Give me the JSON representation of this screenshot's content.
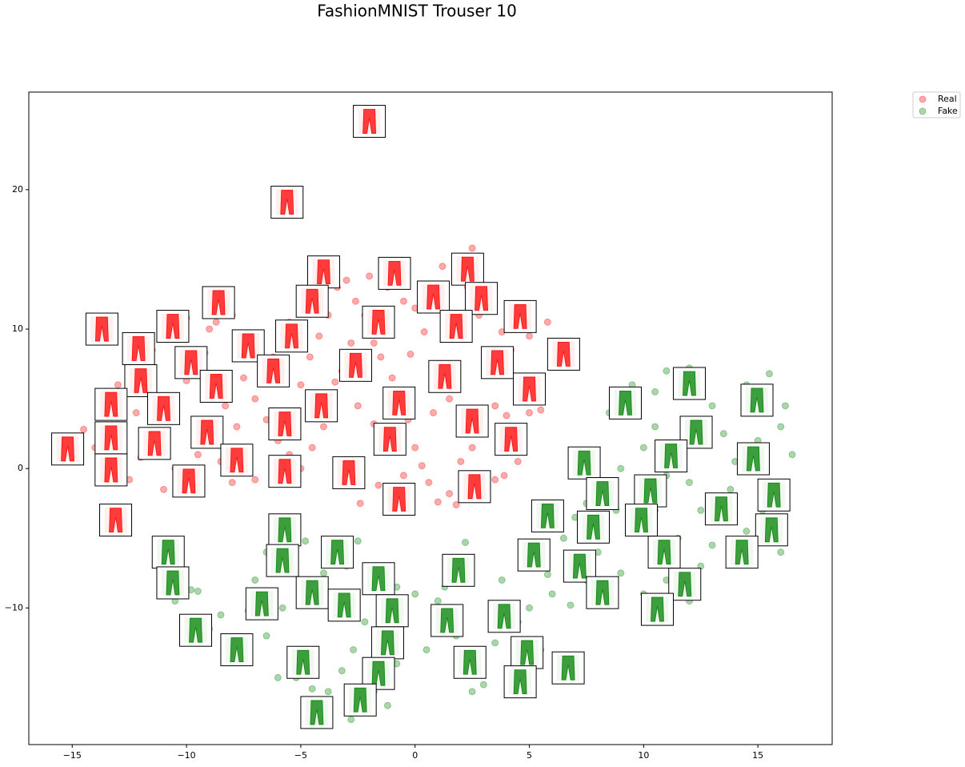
{
  "chart_data": {
    "type": "scatter",
    "title": "FashionMNIST Trouser 10",
    "xlim": [
      -16.9,
      18.25
    ],
    "ylim": [
      -19.8,
      27.0
    ],
    "xticks": [
      {
        "value": -15,
        "label": "−15"
      },
      {
        "value": -10,
        "label": "−10"
      },
      {
        "value": -5,
        "label": "−5"
      },
      0,
      5,
      10,
      15
    ],
    "yticks": [
      {
        "value": -10,
        "label": "−10"
      },
      0,
      10,
      20
    ],
    "legend": "upper-right-outside",
    "series": [
      {
        "name": "Real",
        "color": "#ff0000",
        "x": [
          -14.5,
          -14,
          -13.8,
          -12.5,
          -12,
          -11.5,
          -11,
          -10.5,
          -10,
          -9.5,
          -9,
          -8.7,
          -8,
          -7.5,
          -7,
          -6.5,
          -6,
          -5.5,
          -5,
          -4.6,
          -4.2,
          -3.8,
          -3.4,
          -3,
          -2.6,
          -2.2,
          -1.8,
          -1.5,
          -1,
          -0.6,
          -0.3,
          0,
          0.3,
          0.6,
          1,
          1.5,
          2,
          2.5,
          3,
          3.5,
          4,
          4.5,
          5,
          5.5,
          5.8,
          5,
          4.2,
          3.8,
          2.8,
          2.3,
          1.8,
          1.2,
          0.5,
          0,
          -0.5,
          -1.2,
          -2,
          -2.8,
          -3.2,
          -3.6,
          -4,
          -4.5,
          -5,
          -6,
          -7,
          -8,
          -8.5,
          -9.5,
          -10.5,
          -11,
          -12.2,
          -13,
          -12.5,
          -11.5,
          -10.8,
          -10,
          -9.2,
          -8.3,
          -7.8,
          -6.8,
          -6.2,
          -5.5,
          -4.8,
          -3.5,
          -2.5,
          -1.8,
          -1.2,
          -0.5,
          1.8,
          3.5,
          3.9,
          4.5,
          2.5,
          3.2,
          1.5,
          0.8,
          0.4,
          -0.2,
          2,
          -2.4,
          -1.6
        ],
        "y": [
          2.8,
          1.5,
          0.5,
          -0.8,
          0.8,
          2.6,
          3.5,
          5.2,
          6.3,
          7.1,
          10,
          10.5,
          11,
          6.5,
          5,
          3.5,
          2,
          1,
          6,
          8,
          9.5,
          11,
          13,
          13.5,
          12,
          11,
          9,
          8,
          6.5,
          5.5,
          3.5,
          1.5,
          0.2,
          -1,
          -2.4,
          -1.8,
          0.5,
          1.5,
          3,
          4.5,
          3.8,
          2.8,
          4,
          4.2,
          10.5,
          9.5,
          8.5,
          9.8,
          11,
          13,
          15,
          14.5,
          13,
          11.5,
          12,
          13,
          13.8,
          9,
          7,
          5,
          3,
          1.5,
          0,
          -0.5,
          -0.8,
          -1,
          0.5,
          1,
          0,
          -1.5,
          4,
          6,
          7.5,
          8.5,
          11,
          10.8,
          8.3,
          4.5,
          3,
          9.5,
          8,
          10.5,
          12,
          6.2,
          4.5,
          3.2,
          1.2,
          -0.5,
          -2.6,
          -0.8,
          -0.5,
          0.5,
          15.8,
          7.2,
          5,
          4,
          9.8,
          8.2,
          10.5,
          -2.5,
          -1.2
        ],
        "thumb_x": [
          -2.0,
          -5.6,
          -4.0,
          -0.9,
          2.3,
          -8.6,
          -4.5,
          0.8,
          2.9,
          4.6,
          -13.7,
          -10.6,
          -5.4,
          -1.6,
          1.8,
          -12.1,
          -7.3,
          -9.8,
          -2.6,
          3.6,
          6.5,
          -6.2,
          -12.0,
          1.3,
          5.0,
          -8.7,
          -13.3,
          -11.0,
          -4.1,
          -0.7,
          -5.7,
          2.5,
          -9.1,
          -13.3,
          4.2,
          -1.1,
          -15.2,
          -11.4,
          -7.8,
          -5.7,
          -2.9,
          -13.3,
          -9.9,
          2.6,
          -0.7,
          -13.1
        ],
        "thumb_y": [
          24.9,
          19.1,
          14.1,
          14.0,
          14.3,
          11.9,
          12.0,
          12.3,
          12.2,
          10.9,
          10.0,
          10.2,
          9.5,
          10.5,
          10.2,
          8.6,
          8.8,
          7.6,
          7.4,
          7.6,
          8.2,
          7.0,
          6.3,
          6.6,
          5.7,
          5.9,
          4.6,
          4.3,
          4.5,
          4.7,
          3.2,
          3.4,
          2.6,
          2.2,
          2.1,
          2.1,
          1.4,
          1.8,
          0.6,
          -0.2,
          -0.3,
          -0.1,
          -0.9,
          -1.3,
          -2.2,
          -3.7
        ]
      },
      {
        "name": "Fake",
        "color": "#008000",
        "x": [
          8.5,
          9.5,
          10.5,
          11,
          12,
          13,
          13.5,
          14.5,
          15.5,
          16,
          16.5,
          15.8,
          15.2,
          14.5,
          16,
          13,
          12.5,
          12,
          11,
          10,
          9,
          8.5,
          7.5,
          7,
          6.5,
          8,
          9,
          10,
          11,
          12,
          12.5,
          11.5,
          10.5,
          9.8,
          8.8,
          14,
          13.8,
          15,
          16.2,
          11.8,
          10.5,
          7.5,
          6,
          5,
          4.5,
          3.5,
          4.2,
          5,
          6.2,
          5.5,
          3,
          2.5,
          1.8,
          1,
          0,
          -0.8,
          -1.5,
          -2.2,
          -2.7,
          -3.2,
          -3.8,
          -4.5,
          -5.2,
          -6,
          -6.5,
          -7.5,
          -8.2,
          -9,
          -10,
          -10.5,
          -9.8,
          -9.5,
          -7,
          -6.5,
          -5.5,
          -4.8,
          -4,
          -3,
          -2.5,
          -1.8,
          -1.2,
          -2.8,
          -4.2,
          -0.8,
          0.5,
          2.2,
          1.3,
          3.8,
          4.8,
          5.8,
          6.8,
          -5.8,
          -7.3,
          -8.5
        ],
        "y": [
          4,
          6,
          5.5,
          7,
          7.2,
          4.5,
          2.5,
          6,
          6.8,
          3,
          1,
          -1,
          -3,
          -4.5,
          -6,
          -5.5,
          -3,
          -1,
          -0.5,
          1.5,
          0,
          -1,
          -2.5,
          -3.5,
          -5,
          -6,
          -7.5,
          -9,
          -8,
          -9.5,
          -7,
          -5,
          -3,
          -1,
          -3,
          0.5,
          -1.5,
          2,
          4.5,
          3,
          3,
          -8,
          -9,
          -10,
          -11,
          -12.5,
          -14.5,
          -16,
          -15.2,
          -13,
          -15.5,
          -16,
          -12,
          -9.5,
          -9,
          -8.5,
          -9.5,
          -11,
          -13,
          -14.5,
          -16,
          -15.8,
          -15,
          -15,
          -12,
          -12.5,
          -13,
          -11.5,
          -12.5,
          -9.5,
          -8.7,
          -8.8,
          -8,
          -6,
          -5,
          -5.2,
          -7.5,
          -7,
          -5.2,
          -16,
          -17,
          -18,
          -17.2,
          -14,
          -13,
          -5.3,
          -8.5,
          -8,
          -6.2,
          -7.6,
          -9.8,
          -10,
          -10.2,
          -10.5
        ],
        "thumb_x": [
          12.0,
          14.96,
          9.2,
          12.3,
          7.4,
          11.2,
          14.8,
          10.3,
          8.2,
          15.7,
          5.8,
          13.4,
          9.9,
          7.8,
          15.6,
          -5.7,
          10.9,
          14.3,
          -10.8,
          -3.4,
          5.2,
          -5.8,
          7.2,
          1.9,
          -1.6,
          11.8,
          -10.6,
          -4.5,
          8.2,
          -6.7,
          -3.1,
          -1.0,
          10.6,
          1.4,
          3.9,
          -9.6,
          -1.2,
          -7.8,
          4.9,
          -4.9,
          2.4,
          -1.6,
          6.7,
          4.6,
          -2.4,
          -4.3
        ],
        "thumb_y": [
          6.1,
          4.9,
          4.7,
          2.6,
          0.4,
          0.9,
          0.7,
          -1.6,
          -1.8,
          -1.9,
          -3.4,
          -2.9,
          -3.7,
          -4.2,
          -4.4,
          -4.4,
          -6.0,
          -6.0,
          -6.0,
          -6.0,
          -6.2,
          -6.6,
          -7.0,
          -7.3,
          -7.9,
          -8.3,
          -8.2,
          -8.9,
          -8.9,
          -9.7,
          -9.8,
          -10.2,
          -10.1,
          -10.9,
          -10.6,
          -11.6,
          -12.5,
          -13.0,
          -13.2,
          -13.9,
          -13.9,
          -14.7,
          -14.3,
          -15.3,
          -16.6,
          -17.5
        ]
      }
    ]
  }
}
